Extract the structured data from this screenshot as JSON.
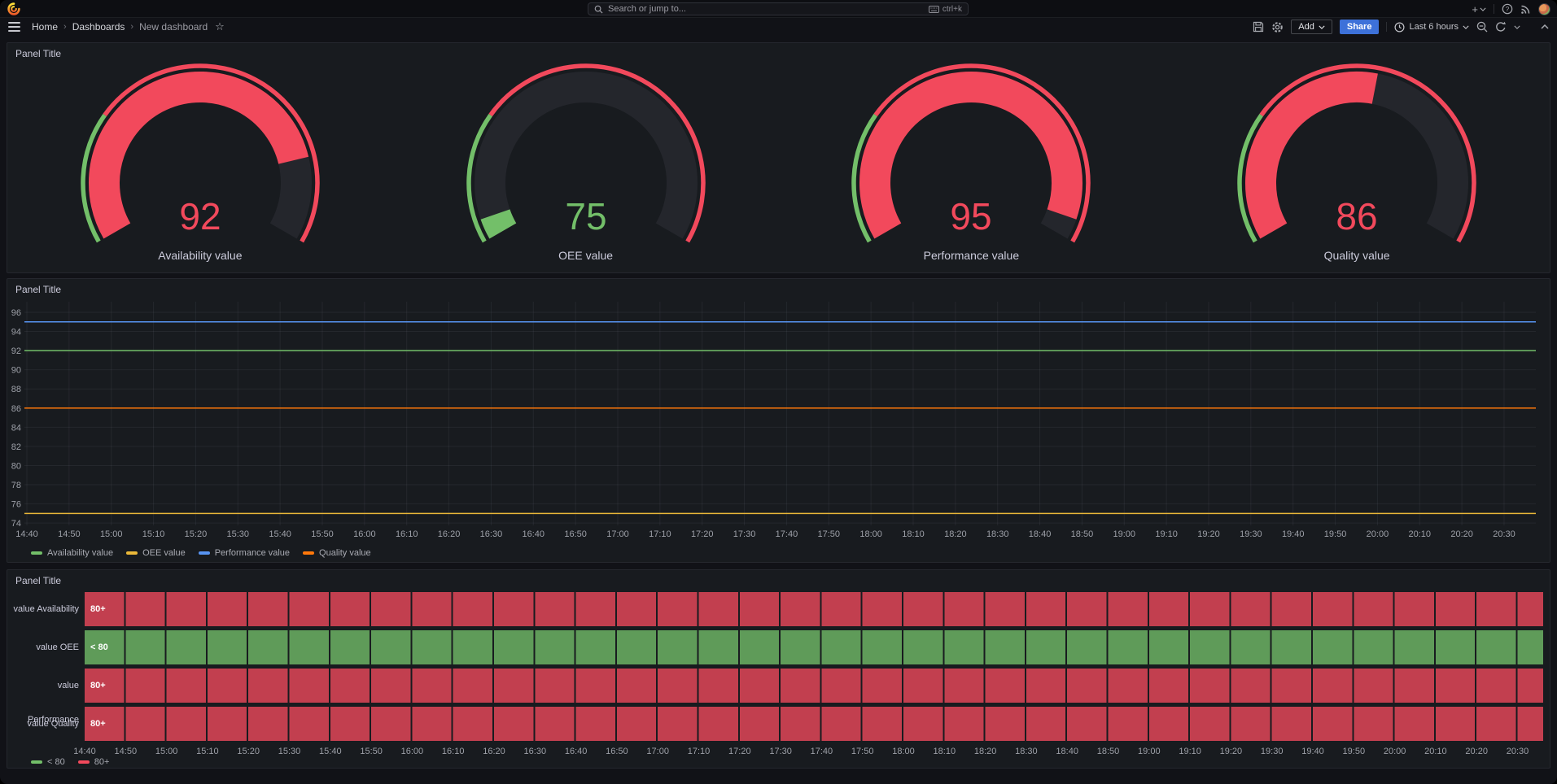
{
  "topnav": {
    "search_placeholder": "Search or jump to...",
    "search_shortcut": "ctrl+k"
  },
  "breadcrumb": {
    "home": "Home",
    "section": "Dashboards",
    "current": "New dashboard"
  },
  "toolbar": {
    "add_label": "Add",
    "share_label": "Share",
    "time_range": "Last 6 hours"
  },
  "colors": {
    "accent_blue": "#3D71D9",
    "green": "#73BF69",
    "red": "#F2495C",
    "yellow": "#EAB839",
    "blue": "#5794F2",
    "orange": "#FF780A",
    "panel_bg": "#181b1f",
    "gauge_track": "#24262c"
  },
  "chart_data": [
    {
      "type": "gauge",
      "title": "Panel Title",
      "min": 74,
      "max": 96,
      "thresholds": [
        {
          "from": 74,
          "color": "#73BF69"
        },
        {
          "from": 80,
          "color": "#F2495C"
        }
      ],
      "gauges": [
        {
          "label": "Availability value",
          "value": 92,
          "color": "#F2495C"
        },
        {
          "label": "OEE value",
          "value": 75,
          "color": "#73BF69"
        },
        {
          "label": "Performance value",
          "value": 95,
          "color": "#F2495C"
        },
        {
          "label": "Quality value",
          "value": 86,
          "color": "#F2495C"
        }
      ]
    },
    {
      "type": "line",
      "title": "Panel Title",
      "ylim": [
        74,
        96
      ],
      "y_ticks": [
        96,
        94,
        92,
        90,
        88,
        86,
        84,
        82,
        80,
        78,
        76,
        74
      ],
      "x_ticks": [
        "14:40",
        "14:50",
        "15:00",
        "15:10",
        "15:20",
        "15:30",
        "15:40",
        "15:50",
        "16:00",
        "16:10",
        "16:20",
        "16:30",
        "16:40",
        "16:50",
        "17:00",
        "17:10",
        "17:20",
        "17:30",
        "17:40",
        "17:50",
        "18:00",
        "18:10",
        "18:20",
        "18:30",
        "18:40",
        "18:50",
        "19:00",
        "19:10",
        "19:20",
        "19:30",
        "19:40",
        "19:50",
        "20:00",
        "20:10",
        "20:20",
        "20:30"
      ],
      "grid": true,
      "legend_position": "bottom",
      "series": [
        {
          "name": "Availability value",
          "color": "#73BF69",
          "constant_value": 92
        },
        {
          "name": "OEE value",
          "color": "#EAB839",
          "constant_value": 75
        },
        {
          "name": "Performance value",
          "color": "#5794F2",
          "constant_value": 95
        },
        {
          "name": "Quality value",
          "color": "#FF780A",
          "constant_value": 86
        }
      ]
    },
    {
      "type": "timeline",
      "title": "Panel Title",
      "x_ticks": [
        "14:40",
        "14:50",
        "15:00",
        "15:10",
        "15:20",
        "15:30",
        "15:40",
        "15:50",
        "16:00",
        "16:10",
        "16:20",
        "16:30",
        "16:40",
        "16:50",
        "17:00",
        "17:10",
        "17:20",
        "17:30",
        "17:40",
        "17:50",
        "18:00",
        "18:10",
        "18:20",
        "18:30",
        "18:40",
        "18:50",
        "19:00",
        "19:10",
        "19:20",
        "19:30",
        "19:40",
        "19:50",
        "20:00",
        "20:10",
        "20:20",
        "20:30"
      ],
      "rows": [
        {
          "label": "value Availability",
          "state": "80+",
          "color": "#F2495C"
        },
        {
          "label": "value OEE",
          "state": "< 80",
          "color": "#73BF69"
        },
        {
          "label": "value Performance",
          "state": "80+",
          "color": "#F2495C"
        },
        {
          "label": "value Quality",
          "state": "80+",
          "color": "#F2495C"
        }
      ],
      "legend": [
        {
          "label": "< 80",
          "color": "#73BF69"
        },
        {
          "label": "80+",
          "color": "#F2495C"
        }
      ]
    }
  ]
}
